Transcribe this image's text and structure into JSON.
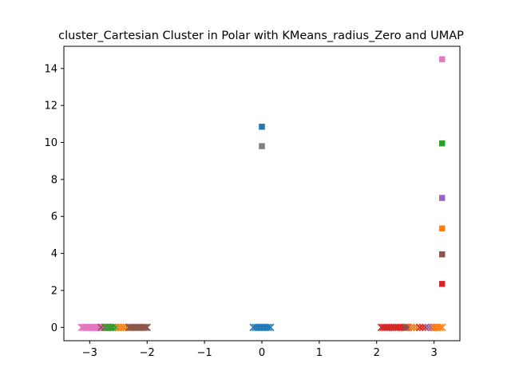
{
  "chart_data": {
    "type": "scatter",
    "title": "cluster_Cartesian Cluster in Polar with KMeans_radius_Zero and UMAP",
    "xlabel": "",
    "ylabel": "",
    "xlim": [
      -3.45,
      3.45
    ],
    "ylim": [
      -0.72,
      15.2
    ],
    "xticks": [
      -3,
      -2,
      -1,
      0,
      1,
      2,
      3
    ],
    "yticks": [
      0,
      2,
      4,
      6,
      8,
      10,
      12,
      14
    ],
    "grid": false,
    "legend": "none",
    "palette": [
      "#1f77b4",
      "#ff7f0e",
      "#2ca02c",
      "#d62728",
      "#9467bd",
      "#8c564b",
      "#e377c2",
      "#7f7f7f"
    ],
    "centers": [
      {
        "x": 0.0,
        "y": 10.85,
        "color": "#1f77b4"
      },
      {
        "x": 0.0,
        "y": 9.8,
        "color": "#7f7f7f"
      },
      {
        "x": 3.14,
        "y": 14.5,
        "color": "#e377c2"
      },
      {
        "x": 3.14,
        "y": 9.95,
        "color": "#2ca02c"
      },
      {
        "x": 3.14,
        "y": 7.0,
        "color": "#9467bd"
      },
      {
        "x": 3.14,
        "y": 5.35,
        "color": "#ff7f0e"
      },
      {
        "x": 3.14,
        "y": 3.95,
        "color": "#8c564b"
      },
      {
        "x": 3.14,
        "y": 2.35,
        "color": "#d62728"
      }
    ],
    "point_groups": [
      {
        "color": "#e377c2",
        "y": 0,
        "x_from": -3.14,
        "x_to": -2.75,
        "count": 14
      },
      {
        "color": "#8c564b",
        "y": 0,
        "x_from": -2.8,
        "x_to": -2.6,
        "count": 4
      },
      {
        "color": "#2ca02c",
        "y": 0,
        "x_from": -2.72,
        "x_to": -2.5,
        "count": 6
      },
      {
        "color": "#ff7f0e",
        "y": 0,
        "x_from": -2.5,
        "x_to": -2.32,
        "count": 5
      },
      {
        "color": "#8c564b",
        "y": 0,
        "x_from": -2.32,
        "x_to": -2.0,
        "count": 11
      },
      {
        "color": "#1f77b4",
        "y": 0,
        "x_from": -0.15,
        "x_to": 0.15,
        "count": 9
      },
      {
        "color": "#d62728",
        "y": 0,
        "x_from": 2.08,
        "x_to": 2.55,
        "count": 15
      },
      {
        "color": "#8c564b",
        "y": 0,
        "x_from": 2.5,
        "x_to": 2.65,
        "count": 4
      },
      {
        "color": "#ff7f0e",
        "y": 0,
        "x_from": 2.6,
        "x_to": 2.75,
        "count": 4
      },
      {
        "color": "#d62728",
        "y": 0,
        "x_from": 2.75,
        "x_to": 2.95,
        "count": 5
      },
      {
        "color": "#9467bd",
        "y": 0,
        "x_from": 2.9,
        "x_to": 3.0,
        "count": 3
      },
      {
        "color": "#ff7f0e",
        "y": 0,
        "x_from": 2.98,
        "x_to": 3.14,
        "count": 5
      }
    ]
  }
}
